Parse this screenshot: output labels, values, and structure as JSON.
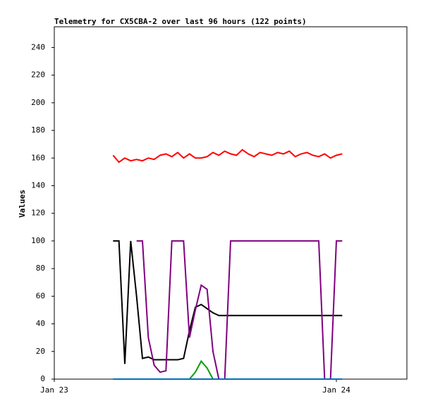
{
  "chart_data": {
    "type": "line",
    "title": "Telemetry for CX5CBA-2 over last 96 hours (122 points)",
    "y_label": "Values",
    "x": [
      5,
      5.5,
      6,
      6.5,
      7,
      7.5,
      8,
      8.5,
      9,
      9.5,
      10,
      10.5,
      11,
      11.5,
      12,
      12.5,
      13,
      13.5,
      14,
      14.5,
      15,
      15.5,
      16,
      16.5,
      17,
      17.5,
      18,
      18.5,
      19,
      19.5,
      20,
      20.5,
      21,
      21.5,
      22,
      22.5,
      23,
      23.5,
      24,
      24.5
    ],
    "xlim": [
      0,
      30
    ],
    "xticks": [
      {
        "value": 0,
        "label": "Jan 23"
      },
      {
        "value": 24,
        "label": "Jan 24"
      }
    ],
    "ylim": [
      0,
      255
    ],
    "yticks": [
      0,
      20,
      40,
      60,
      80,
      100,
      120,
      140,
      160,
      180,
      200,
      220,
      240
    ],
    "grid": false,
    "series": [
      {
        "name": "red",
        "color": "#ff0000",
        "values": [
          162,
          157,
          160,
          158,
          159,
          158,
          160,
          159,
          162,
          163,
          161,
          164,
          160,
          163,
          160,
          160,
          161,
          164,
          162,
          165,
          163,
          162,
          166,
          163,
          161,
          164,
          163,
          162,
          164,
          163,
          165,
          161,
          163,
          164,
          162,
          161,
          163,
          160,
          162,
          163
        ]
      },
      {
        "name": "black",
        "color": "#000000",
        "values": [
          100,
          100,
          11,
          100,
          60,
          15,
          16,
          14,
          14,
          14,
          14,
          14,
          15,
          35,
          52,
          54,
          51,
          48,
          46,
          46,
          46,
          46,
          46,
          46,
          46,
          46,
          46,
          46,
          46,
          46,
          46,
          46,
          46,
          46,
          46,
          46,
          46,
          46,
          46,
          46
        ]
      },
      {
        "name": "purple",
        "color": "#800080",
        "values": [
          null,
          null,
          null,
          null,
          100,
          100,
          30,
          10,
          5,
          6,
          100,
          100,
          100,
          30,
          50,
          68,
          65,
          20,
          0,
          0,
          100,
          100,
          100,
          100,
          100,
          100,
          100,
          100,
          100,
          100,
          100,
          100,
          100,
          100,
          100,
          100,
          0,
          0,
          100,
          100
        ]
      },
      {
        "name": "green",
        "color": "#00a000",
        "values": [
          0,
          0,
          0,
          0,
          0,
          0,
          0,
          0,
          0,
          0,
          0,
          0,
          0,
          0,
          5,
          13,
          8,
          0,
          0,
          0,
          0,
          0,
          0,
          0,
          0,
          0,
          0,
          0,
          0,
          0,
          0,
          0,
          0,
          0,
          0,
          0,
          0,
          0,
          0,
          0
        ]
      },
      {
        "name": "blue",
        "color": "#0070c0",
        "values": [
          0,
          0,
          0,
          0,
          0,
          0,
          0,
          0,
          0,
          0,
          0,
          0,
          0,
          0,
          0,
          0,
          0,
          0,
          0,
          0,
          0,
          0,
          0,
          0,
          0,
          0,
          0,
          0,
          0,
          0,
          0,
          0,
          0,
          0,
          0,
          0,
          0,
          0,
          0,
          0
        ]
      }
    ]
  }
}
